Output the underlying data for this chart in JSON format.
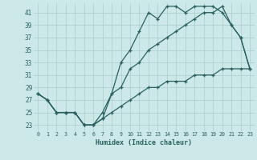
{
  "xlabel": "Humidex (Indice chaleur)",
  "xlim": [
    -0.5,
    23.5
  ],
  "ylim": [
    22.0,
    42.5
  ],
  "yticks": [
    23,
    25,
    27,
    29,
    31,
    33,
    35,
    37,
    39,
    41
  ],
  "xticks": [
    0,
    1,
    2,
    3,
    4,
    5,
    6,
    7,
    8,
    9,
    10,
    11,
    12,
    13,
    14,
    15,
    16,
    17,
    18,
    19,
    20,
    21,
    22,
    23
  ],
  "background_color": "#cce8e8",
  "grid_color": "#aacccc",
  "line_color": "#2a6060",
  "line1_x": [
    0,
    1,
    2,
    3,
    4,
    5,
    6,
    7,
    8,
    9,
    10,
    11,
    12,
    13,
    14,
    15,
    16,
    17,
    18,
    19,
    20,
    21,
    22,
    23
  ],
  "line1_y": [
    28,
    27,
    25,
    25,
    25,
    23,
    23,
    24,
    28,
    33,
    35,
    38,
    41,
    40,
    42,
    42,
    41,
    42,
    42,
    42,
    41,
    39,
    37,
    32
  ],
  "line2_x": [
    0,
    1,
    2,
    3,
    4,
    5,
    6,
    7,
    8,
    9,
    10,
    11,
    12,
    13,
    14,
    15,
    16,
    17,
    18,
    19,
    20,
    21,
    22,
    23
  ],
  "line2_y": [
    28,
    27,
    25,
    25,
    25,
    23,
    23,
    24,
    25,
    26,
    27,
    28,
    29,
    29,
    30,
    30,
    30,
    31,
    31,
    31,
    32,
    32,
    32,
    32
  ],
  "line3_x": [
    0,
    1,
    2,
    3,
    4,
    5,
    6,
    7,
    8,
    9,
    10,
    11,
    12,
    13,
    14,
    15,
    16,
    17,
    18,
    19,
    20,
    21,
    22,
    23
  ],
  "line3_y": [
    28,
    27,
    25,
    25,
    25,
    23,
    23,
    25,
    28,
    29,
    32,
    33,
    35,
    36,
    37,
    38,
    39,
    40,
    41,
    41,
    42,
    39,
    37,
    32
  ]
}
